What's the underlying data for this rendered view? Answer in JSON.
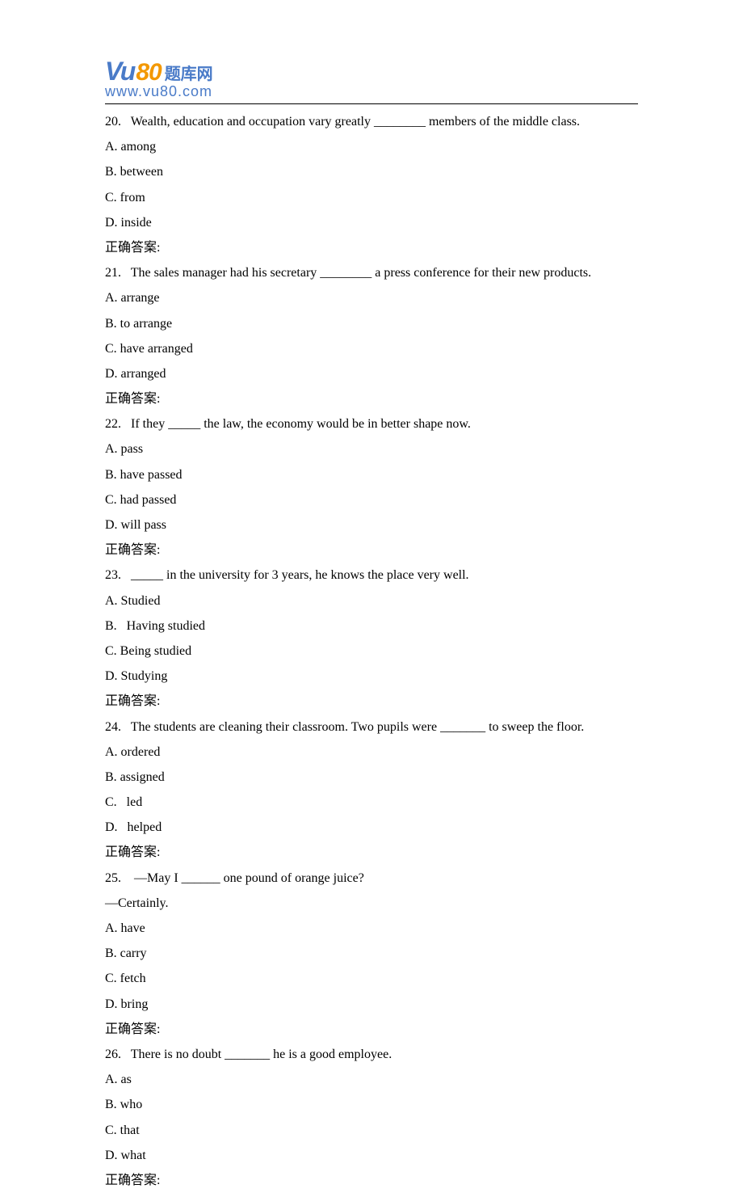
{
  "logo": {
    "prefix": "Vu",
    "number": "80",
    "cn_text": "题库网",
    "url": "www.vu80.com"
  },
  "answer_label": "正确答案:",
  "questions": [
    {
      "num": "20.",
      "text": "   Wealth, education and occupation vary greatly ________ members of the middle class.",
      "options": [
        "A. among",
        "B. between",
        "C. from",
        "D. inside"
      ]
    },
    {
      "num": "21.",
      "text": "   The sales manager had his secretary ________ a press conference for their new products.",
      "options": [
        "A. arrange",
        "B. to arrange",
        "C. have arranged",
        "D. arranged"
      ]
    },
    {
      "num": "22.",
      "text": "   If they _____ the law, the economy would be in better shape now.",
      "options": [
        "A. pass",
        "B. have passed",
        "C. had passed",
        "D. will pass"
      ]
    },
    {
      "num": "23.",
      "text": "   _____ in the university for 3 years, he knows the place very well.",
      "options": [
        "A. Studied",
        "B.   Having studied",
        "C. Being studied",
        "D. Studying"
      ]
    },
    {
      "num": "24.",
      "text": "   The students are cleaning their classroom. Two pupils were _______ to sweep the floor.",
      "options": [
        "A. ordered",
        "B. assigned",
        "C.   led",
        "D.   helped"
      ]
    },
    {
      "num": "25.",
      "text": "    —May I ______ one pound of orange juice?",
      "extra_line": "—Certainly.",
      "options": [
        "A. have",
        "B. carry",
        "C. fetch",
        "D. bring"
      ]
    },
    {
      "num": "26.",
      "text": "   There is no doubt _______ he is a good employee.",
      "options": [
        "A. as",
        "B. who",
        "C. that",
        "D. what"
      ]
    }
  ],
  "style": {
    "body_font_size": 16,
    "body_font_family": "Times New Roman",
    "text_color": "#000000",
    "bg_color": "#ffffff",
    "logo_blue": "#4a7bc8",
    "logo_orange": "#f39800",
    "line_height": 1.95
  }
}
